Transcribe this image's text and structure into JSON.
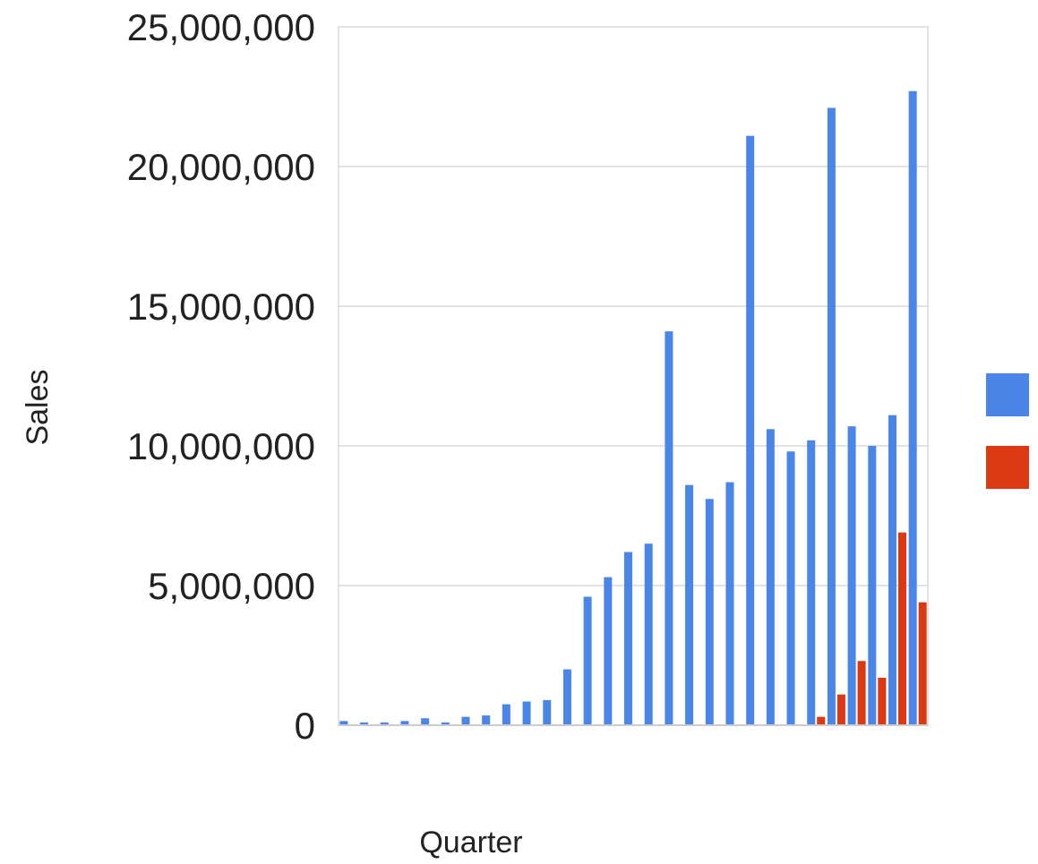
{
  "chart_data": {
    "type": "bar",
    "xlabel": "Quarter",
    "ylabel": "Sales",
    "ylim": [
      0,
      25000000
    ],
    "yticks": [
      0,
      5000000,
      10000000,
      15000000,
      20000000,
      25000000
    ],
    "ytick_labels": [
      "0",
      "5,000,000",
      "10,000,000",
      "15,000,000",
      "20,000,000",
      "25,000,000"
    ],
    "grid": true,
    "legend_position": "right",
    "x_count": 29,
    "series": [
      {
        "color": "#4a86e8",
        "values": [
          150000,
          100000,
          100000,
          150000,
          250000,
          100000,
          300000,
          350000,
          750000,
          850000,
          900000,
          2000000,
          4600000,
          5300000,
          6200000,
          6500000,
          14100000,
          8600000,
          8100000,
          8700000,
          21100000,
          10600000,
          9800000,
          10200000,
          22100000,
          10700000,
          10000000,
          11100000,
          22700000
        ]
      },
      {
        "color": "#dc3912",
        "values": [
          0,
          0,
          0,
          0,
          0,
          0,
          0,
          0,
          0,
          0,
          0,
          0,
          0,
          0,
          0,
          0,
          0,
          0,
          0,
          0,
          0,
          0,
          0,
          300000,
          1100000,
          2300000,
          1700000,
          6900000,
          4400000
        ]
      }
    ]
  }
}
